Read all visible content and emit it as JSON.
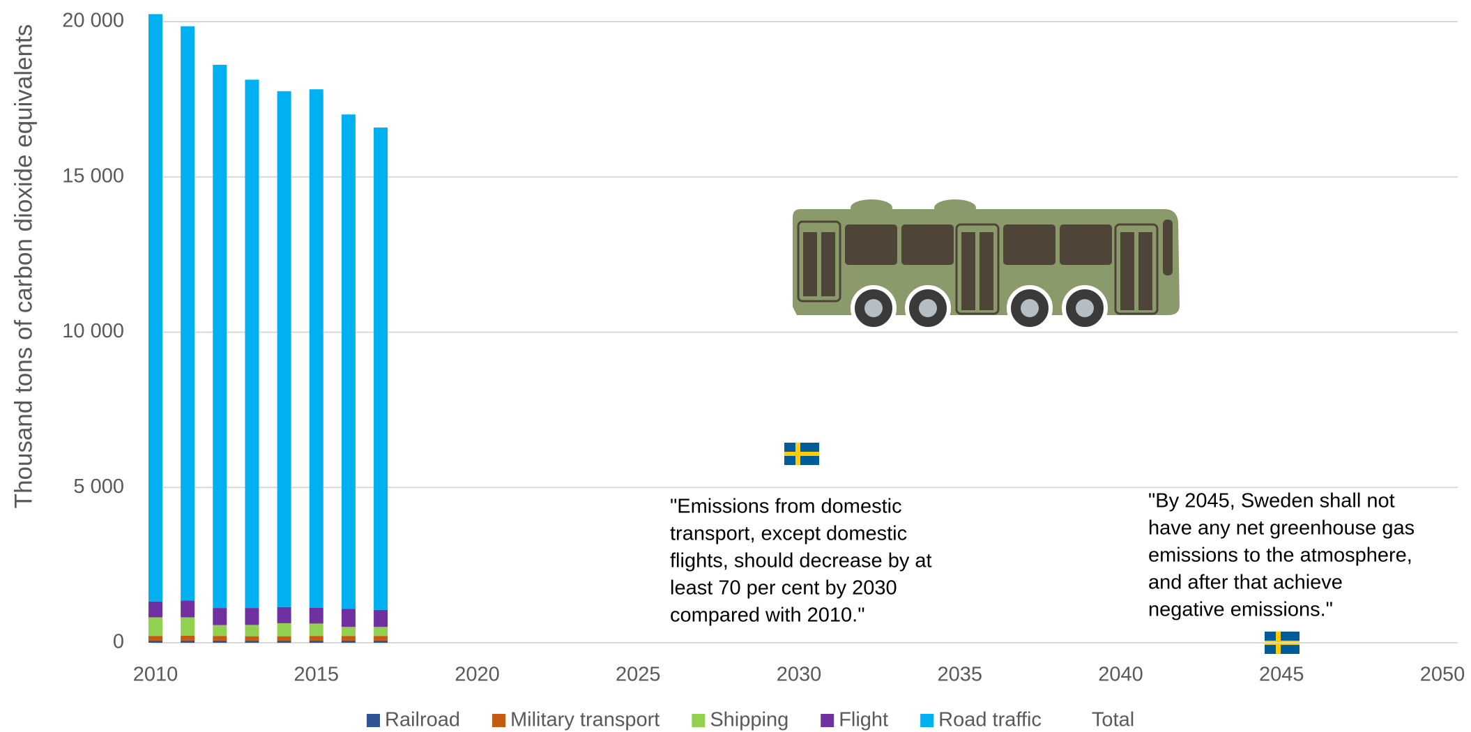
{
  "chart_data": {
    "type": "bar",
    "stacked": true,
    "y_label": "Thousand tons of carbon dioxide equivalents",
    "x": [
      2010,
      2011,
      2012,
      2013,
      2014,
      2015,
      2016,
      2017
    ],
    "xlim": [
      2010,
      2050
    ],
    "xticks": [
      2010,
      2015,
      2020,
      2025,
      2030,
      2035,
      2040,
      2045,
      2050
    ],
    "ylim": [
      0,
      20000
    ],
    "yticks": [
      0,
      {
        "value": 5000,
        "label": "5 000"
      },
      {
        "value": 10000,
        "label": "10 000"
      },
      {
        "value": 15000,
        "label": "15 000"
      },
      {
        "value": 20000,
        "label": "20 000"
      }
    ],
    "grid": true,
    "legend": "bottom",
    "series": [
      {
        "name": "Railroad",
        "color": "#2f5597",
        "values": [
          70,
          70,
          70,
          70,
          70,
          70,
          70,
          70
        ]
      },
      {
        "name": "Military transport",
        "color": "#c55a11",
        "values": [
          150,
          160,
          150,
          140,
          140,
          150,
          150,
          150
        ]
      },
      {
        "name": "Shipping",
        "color": "#92d050",
        "values": [
          600,
          590,
          350,
          365,
          420,
          400,
          290,
          290
        ]
      },
      {
        "name": "Flight",
        "color": "#7030a0",
        "values": [
          510,
          540,
          550,
          545,
          520,
          510,
          580,
          550
        ]
      },
      {
        "name": "Road traffic",
        "color": "#00b0f0",
        "values": [
          18910,
          18490,
          17490,
          17010,
          16610,
          16690,
          15920,
          15530
        ]
      },
      {
        "name": "Total",
        "values": [
          null,
          null,
          null,
          null,
          null,
          null,
          null,
          null
        ]
      }
    ],
    "annotations": [
      {
        "lines": [
          "\"Emissions from domestic",
          "transport, except domestic",
          "flights, should decrease by at",
          "least 70 per cent by 2030",
          "compared with 2010.\""
        ]
      },
      {
        "lines": [
          "\"By 2045, Sweden shall not",
          "have any net greenhouse gas",
          "emissions to the atmosphere,",
          "and after that achieve",
          "negative emissions.\""
        ]
      }
    ]
  }
}
